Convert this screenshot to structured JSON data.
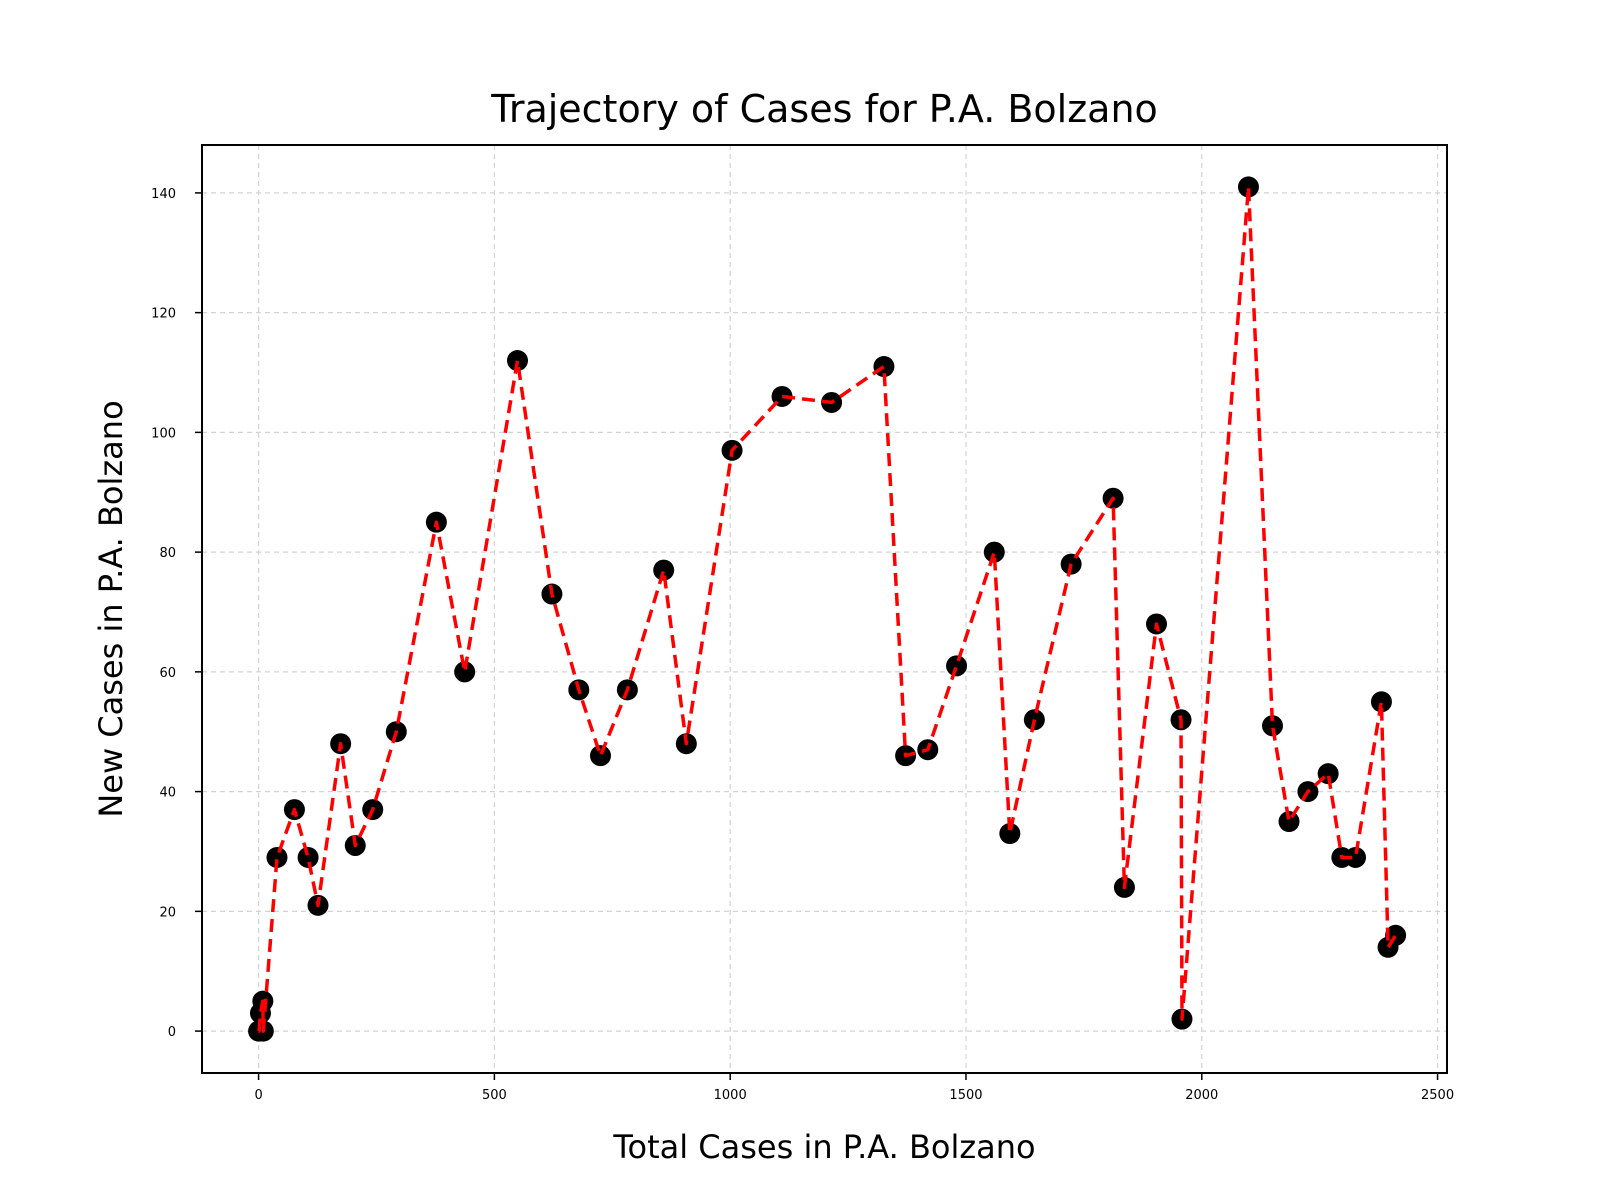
{
  "chart_data": {
    "type": "line",
    "title": "Trajectory of Cases for P.A. Bolzano",
    "xlabel": "Total Cases in P.A. Bolzano",
    "ylabel": "New Cases in P.A. Bolzano",
    "xlim": [
      -120,
      2520
    ],
    "ylim": [
      -7,
      148
    ],
    "xticks": [
      0,
      500,
      1000,
      1500,
      2000,
      2500
    ],
    "yticks": [
      0,
      20,
      40,
      60,
      80,
      100,
      120,
      140
    ],
    "grid": true,
    "legend": "none",
    "series": [
      {
        "line_color": "#ff0000",
        "line_style": "dashed",
        "marker_color": "#000000",
        "marker": "circle",
        "points": [
          [
            0,
            0
          ],
          [
            1,
            0
          ],
          [
            4,
            3
          ],
          [
            9,
            5
          ],
          [
            10,
            0
          ],
          [
            39,
            29
          ],
          [
            76,
            37
          ],
          [
            105,
            29
          ],
          [
            126,
            21
          ],
          [
            174,
            48
          ],
          [
            205,
            31
          ],
          [
            242,
            37
          ],
          [
            292,
            50
          ],
          [
            377,
            85
          ],
          [
            437,
            60
          ],
          [
            549,
            112
          ],
          [
            622,
            73
          ],
          [
            679,
            57
          ],
          [
            725,
            46
          ],
          [
            782,
            57
          ],
          [
            859,
            77
          ],
          [
            907,
            48
          ],
          [
            1004,
            97
          ],
          [
            1110,
            106
          ],
          [
            1215,
            105
          ],
          [
            1326,
            111
          ],
          [
            1372,
            46
          ],
          [
            1419,
            47
          ],
          [
            1480,
            61
          ],
          [
            1560,
            80
          ],
          [
            1593,
            33
          ],
          [
            1645,
            52
          ],
          [
            1723,
            78
          ],
          [
            1812,
            89
          ],
          [
            1836,
            24
          ],
          [
            1904,
            68
          ],
          [
            1956,
            52
          ],
          [
            1958,
            2
          ],
          [
            2099,
            141
          ],
          [
            2150,
            51
          ],
          [
            2185,
            35
          ],
          [
            2225,
            40
          ],
          [
            2268,
            43
          ],
          [
            2297,
            29
          ],
          [
            2326,
            29
          ],
          [
            2381,
            55
          ],
          [
            2395,
            14
          ],
          [
            2411,
            16
          ]
        ]
      }
    ]
  }
}
